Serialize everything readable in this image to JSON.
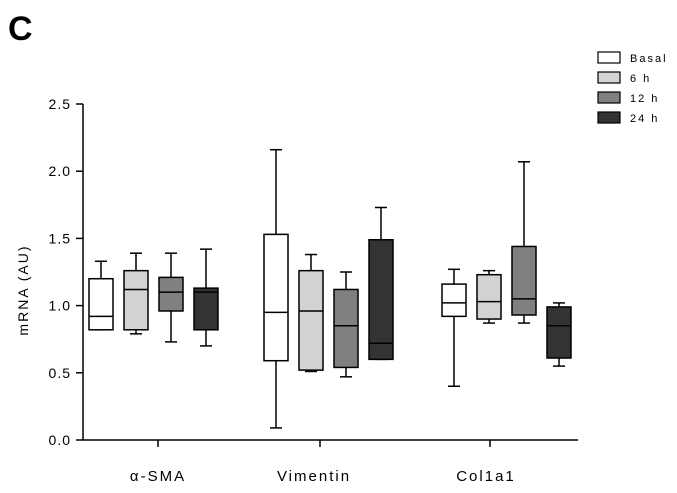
{
  "panel_label": "C",
  "chart_data": {
    "type": "box",
    "title": "",
    "xlabel": "",
    "ylabel": "mRNA (AU)",
    "ylim": [
      0.0,
      2.5
    ],
    "y_ticks": [
      "0.0",
      "0.5",
      "1.0",
      "1.5",
      "2.0",
      "2.5"
    ],
    "categories": [
      "α-SMA",
      "Vimentin",
      "Col1a1"
    ],
    "legend_position": "top-right",
    "series": [
      {
        "name": "Basal",
        "color": "#ffffff",
        "boxes": [
          {
            "min": 0.82,
            "q1": 0.82,
            "median": 0.92,
            "q3": 1.2,
            "max": 1.33
          },
          {
            "min": 0.09,
            "q1": 0.59,
            "median": 0.95,
            "q3": 1.53,
            "max": 2.16
          },
          {
            "min": 0.4,
            "q1": 0.92,
            "median": 1.02,
            "q3": 1.16,
            "max": 1.27
          }
        ]
      },
      {
        "name": "6 h",
        "color": "#d3d3d3",
        "boxes": [
          {
            "min": 0.79,
            "q1": 0.82,
            "median": 1.12,
            "q3": 1.26,
            "max": 1.39
          },
          {
            "min": 0.51,
            "q1": 0.52,
            "median": 0.96,
            "q3": 1.26,
            "max": 1.38
          },
          {
            "min": 0.87,
            "q1": 0.9,
            "median": 1.03,
            "q3": 1.23,
            "max": 1.26
          }
        ]
      },
      {
        "name": "12 h",
        "color": "#808080",
        "boxes": [
          {
            "min": 0.73,
            "q1": 0.96,
            "median": 1.1,
            "q3": 1.21,
            "max": 1.39
          },
          {
            "min": 0.47,
            "q1": 0.54,
            "median": 0.85,
            "q3": 1.12,
            "max": 1.25
          },
          {
            "min": 0.87,
            "q1": 0.93,
            "median": 1.05,
            "q3": 1.44,
            "max": 2.07
          }
        ]
      },
      {
        "name": "24 h",
        "color": "#333333",
        "boxes": [
          {
            "min": 0.7,
            "q1": 0.82,
            "median": 1.1,
            "q3": 1.13,
            "max": 1.42
          },
          {
            "min": 0.6,
            "q1": 0.6,
            "median": 0.72,
            "q3": 1.49,
            "max": 1.73
          },
          {
            "min": 0.55,
            "q1": 0.61,
            "median": 0.85,
            "q3": 0.99,
            "max": 1.02
          }
        ]
      }
    ]
  }
}
